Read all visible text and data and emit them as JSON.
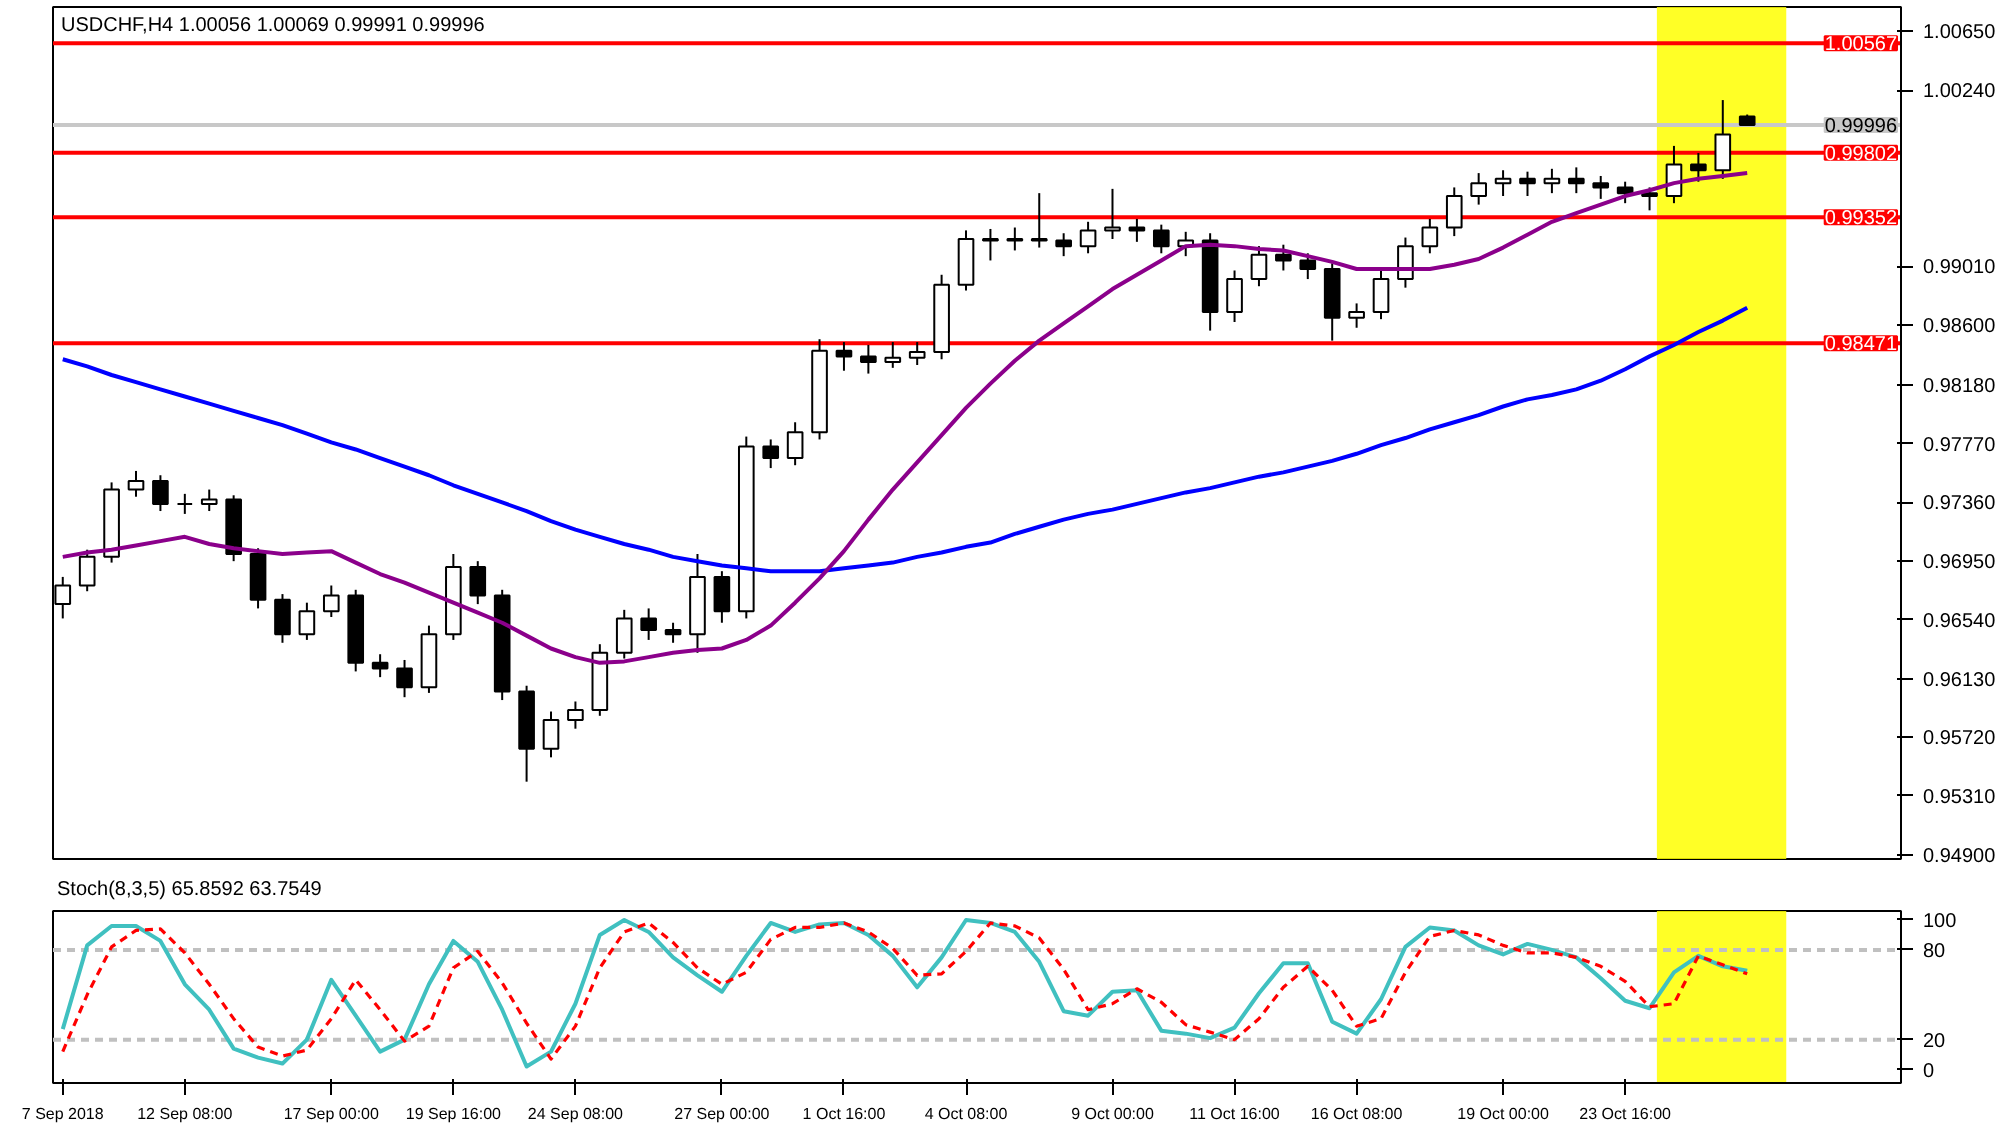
{
  "chart_data": [
    {
      "type": "candlestick",
      "title": "USDCHF,H4 1.00056 1.00069 0.99991 0.99996",
      "categories": [
        null,
        null,
        null,
        null,
        null,
        null,
        null,
        null,
        null,
        null,
        null,
        null,
        null,
        null,
        null,
        null,
        null,
        null,
        null,
        null,
        null,
        null,
        null,
        null,
        null,
        null,
        null,
        null,
        null,
        null,
        null,
        null,
        null,
        null,
        null,
        null,
        null,
        null,
        null,
        null,
        null,
        null,
        null,
        null,
        null,
        null,
        null,
        null,
        null,
        null,
        null,
        null,
        null,
        null,
        null,
        null,
        null,
        null,
        null,
        null,
        null,
        null,
        null,
        null,
        null,
        null,
        null,
        null,
        null,
        null
      ],
      "ohlc": [
        [
          0.9665,
          0.9684,
          0.9655,
          0.9678
        ],
        [
          0.9678,
          0.9703,
          0.9674,
          0.9698
        ],
        [
          0.9698,
          0.975,
          0.9694,
          0.9745
        ],
        [
          0.9745,
          0.9758,
          0.974,
          0.9751
        ],
        [
          0.9751,
          0.9755,
          0.973,
          0.9735
        ],
        [
          0.9735,
          0.9742,
          0.9728,
          0.9735
        ],
        [
          0.9735,
          0.9745,
          0.973,
          0.9738
        ],
        [
          0.9738,
          0.9741,
          0.9695,
          0.97
        ],
        [
          0.97,
          0.9704,
          0.9662,
          0.9668
        ],
        [
          0.9668,
          0.9672,
          0.9638,
          0.9644
        ],
        [
          0.9644,
          0.9666,
          0.964,
          0.966
        ],
        [
          0.966,
          0.9678,
          0.9656,
          0.9671
        ],
        [
          0.9671,
          0.9675,
          0.9618,
          0.9624
        ],
        [
          0.9624,
          0.963,
          0.9614,
          0.962
        ],
        [
          0.962,
          0.9626,
          0.96,
          0.9607
        ],
        [
          0.9607,
          0.965,
          0.9603,
          0.9644
        ],
        [
          0.9644,
          0.97,
          0.964,
          0.9691
        ],
        [
          0.9691,
          0.9695,
          0.9665,
          0.9671
        ],
        [
          0.9671,
          0.9675,
          0.9598,
          0.9604
        ],
        [
          0.9604,
          0.9608,
          0.9541,
          0.9564
        ],
        [
          0.9564,
          0.959,
          0.9558,
          0.9584
        ],
        [
          0.9584,
          0.9597,
          0.9578,
          0.9591
        ],
        [
          0.9591,
          0.9637,
          0.9587,
          0.9631
        ],
        [
          0.9631,
          0.9661,
          0.9627,
          0.9655
        ],
        [
          0.9655,
          0.9662,
          0.964,
          0.9647
        ],
        [
          0.9647,
          0.9652,
          0.9638,
          0.9644
        ],
        [
          0.9644,
          0.97,
          0.9631,
          0.9684
        ],
        [
          0.9684,
          0.9688,
          0.9652,
          0.966
        ],
        [
          0.966,
          0.9782,
          0.9655,
          0.9775
        ],
        [
          0.9775,
          0.978,
          0.976,
          0.9767
        ],
        [
          0.9767,
          0.9792,
          0.9762,
          0.9785
        ],
        [
          0.9785,
          0.985,
          0.978,
          0.9842
        ],
        [
          0.9842,
          0.9848,
          0.9828,
          0.9838
        ],
        [
          0.9838,
          0.9846,
          0.9826,
          0.9834
        ],
        [
          0.9834,
          0.9848,
          0.983,
          0.9837
        ],
        [
          0.9837,
          0.9848,
          0.9832,
          0.9841
        ],
        [
          0.9841,
          0.9895,
          0.9836,
          0.9888
        ],
        [
          0.9888,
          0.9926,
          0.9884,
          0.992
        ],
        [
          0.992,
          0.9927,
          0.9905,
          0.9919
        ],
        [
          0.9919,
          0.9928,
          0.9912,
          0.992
        ],
        [
          0.992,
          0.9952,
          0.9914,
          0.9919
        ],
        [
          0.9919,
          0.9924,
          0.9908,
          0.9915
        ],
        [
          0.9915,
          0.9932,
          0.991,
          0.9926
        ],
        [
          0.9926,
          0.9955,
          0.992,
          0.9928
        ],
        [
          0.9928,
          0.9934,
          0.9918,
          0.9926
        ],
        [
          0.9926,
          0.993,
          0.991,
          0.9915
        ],
        [
          0.9915,
          0.9925,
          0.9908,
          0.9919
        ],
        [
          0.9919,
          0.9924,
          0.9856,
          0.9869
        ],
        [
          0.9869,
          0.9898,
          0.9862,
          0.9892
        ],
        [
          0.9892,
          0.9915,
          0.9887,
          0.9909
        ],
        [
          0.9909,
          0.9916,
          0.9898,
          0.9905
        ],
        [
          0.9905,
          0.991,
          0.9892,
          0.9899
        ],
        [
          0.9899,
          0.9903,
          0.9849,
          0.9865
        ],
        [
          0.9865,
          0.9875,
          0.9858,
          0.9869
        ],
        [
          0.9869,
          0.9898,
          0.9864,
          0.9892
        ],
        [
          0.9892,
          0.9921,
          0.9886,
          0.9915
        ],
        [
          0.9915,
          0.9934,
          0.991,
          0.9928
        ],
        [
          0.9928,
          0.9956,
          0.9922,
          0.995
        ],
        [
          0.995,
          0.9966,
          0.9944,
          0.9959
        ],
        [
          0.9959,
          0.9968,
          0.995,
          0.9962
        ],
        [
          0.9962,
          0.9967,
          0.995,
          0.9959
        ],
        [
          0.9959,
          0.9969,
          0.9952,
          0.9962
        ],
        [
          0.9962,
          0.997,
          0.9952,
          0.9959
        ],
        [
          0.9959,
          0.9964,
          0.9948,
          0.9956
        ],
        [
          0.9956,
          0.996,
          0.9945,
          0.9952
        ],
        [
          0.9952,
          0.9956,
          0.994,
          0.995
        ],
        [
          0.995,
          0.9985,
          0.9945,
          0.9972
        ],
        [
          0.9972,
          0.998,
          0.996,
          0.9968
        ],
        [
          0.9968,
          1.0017,
          0.9962,
          0.9993
        ],
        [
          1.00056,
          1.00069,
          0.99991,
          0.99996
        ]
      ],
      "series": [
        {
          "type": "line",
          "color": "#0000ff",
          "values": [
            0.9836,
            0.9831,
            0.9825,
            0.982,
            0.9815,
            0.981,
            0.9805,
            0.98,
            0.9795,
            0.979,
            0.9784,
            0.9778,
            0.9773,
            0.9767,
            0.9761,
            0.9755,
            0.9748,
            0.9742,
            0.9736,
            0.973,
            0.9723,
            0.9717,
            0.9712,
            0.9707,
            0.9703,
            0.9698,
            0.9695,
            0.9692,
            0.969,
            0.9688,
            0.9688,
            0.9688,
            0.969,
            0.9692,
            0.9694,
            0.9698,
            0.9701,
            0.9705,
            0.9708,
            0.9714,
            0.9719,
            0.9724,
            0.9728,
            0.9731,
            0.9735,
            0.9739,
            0.9743,
            0.9746,
            0.975,
            0.9754,
            0.9757,
            0.9761,
            0.9765,
            0.977,
            0.9776,
            0.9781,
            0.9787,
            0.9792,
            0.9797,
            0.9803,
            0.9808,
            0.9811,
            0.9815,
            0.9821,
            0.9829,
            0.9838,
            0.9846,
            0.9855,
            0.9863,
            0.9872
          ]
        },
        {
          "type": "line",
          "color": "#8b008b",
          "values": [
            0.9698,
            0.9701,
            0.9703,
            0.9706,
            0.9709,
            0.9712,
            0.9707,
            0.9704,
            0.9702,
            0.97,
            0.9701,
            0.9702,
            0.9694,
            0.9686,
            0.968,
            0.9673,
            0.9666,
            0.9659,
            0.9652,
            0.9643,
            0.9634,
            0.9628,
            0.9624,
            0.9625,
            0.9628,
            0.9631,
            0.9633,
            0.9634,
            0.964,
            0.965,
            0.9666,
            0.9683,
            0.9702,
            0.9724,
            0.9745,
            0.9764,
            0.9783,
            0.9802,
            0.9819,
            0.9835,
            0.9849,
            0.9861,
            0.9873,
            0.9885,
            0.9895,
            0.9905,
            0.9915,
            0.9916,
            0.9915,
            0.9913,
            0.9912,
            0.9908,
            0.9904,
            0.9899,
            0.9899,
            0.9899,
            0.9899,
            0.9902,
            0.9906,
            0.9914,
            0.9923,
            0.9932,
            0.9938,
            0.9944,
            0.995,
            0.9954,
            0.9959,
            0.9962,
            0.9964,
            0.9966
          ]
        }
      ],
      "ylim": [
        0.9487,
        1.0082
      ],
      "yticks": [
        {
          "value": 1.0065,
          "label": "1.00650"
        },
        {
          "value": 1.0024,
          "label": "1.00240"
        },
        {
          "value": 0.9901,
          "label": "0.99010"
        },
        {
          "value": 0.986,
          "label": "0.98600"
        },
        {
          "value": 0.9818,
          "label": "0.98180"
        },
        {
          "value": 0.9777,
          "label": "0.97770"
        },
        {
          "value": 0.9736,
          "label": "0.97360"
        },
        {
          "value": 0.9695,
          "label": "0.96950"
        },
        {
          "value": 0.9654,
          "label": "0.96540"
        },
        {
          "value": 0.9613,
          "label": "0.96130"
        },
        {
          "value": 0.9572,
          "label": "0.95720"
        },
        {
          "value": 0.9531,
          "label": "0.95310"
        },
        {
          "value": 0.949,
          "label": "0.94900"
        }
      ],
      "tick_labels": "y",
      "ref_lines": [
        {
          "axis": "y",
          "value": 1.00567,
          "label": "1.00567",
          "color": "#ff0000"
        },
        {
          "axis": "y",
          "value": 0.99996,
          "label": "0.99996",
          "color": "#c8c8c8"
        },
        {
          "axis": "y",
          "value": 0.99802,
          "label": "0.99802",
          "color": "#ff0000"
        },
        {
          "axis": "y",
          "value": 0.99352,
          "label": "0.99352",
          "color": "#ff0000"
        },
        {
          "axis": "y",
          "value": 0.98471,
          "label": "0.98471",
          "color": "#ff0000"
        }
      ]
    },
    {
      "type": "line",
      "title": "Stoch(8,3,5) 65.8592 63.7549",
      "categories": [
        "7 Sep 2018",
        null,
        null,
        null,
        null,
        "12 Sep 08:00",
        null,
        null,
        null,
        null,
        null,
        "17 Sep 00:00",
        null,
        null,
        null,
        null,
        "19 Sep 16:00",
        null,
        null,
        null,
        null,
        "24 Sep 08:00",
        null,
        null,
        null,
        null,
        null,
        "27 Sep 00:00",
        null,
        null,
        null,
        null,
        "1 Oct 16:00",
        null,
        null,
        null,
        null,
        "4 Oct 08:00",
        null,
        null,
        null,
        null,
        null,
        "9 Oct 00:00",
        null,
        null,
        null,
        null,
        "11 Oct 16:00",
        null,
        null,
        null,
        null,
        "16 Oct 08:00",
        null,
        null,
        null,
        null,
        null,
        "19 Oct 00:00",
        null,
        null,
        null,
        null,
        "23 Oct 16:00",
        null,
        null,
        null,
        null,
        null
      ],
      "series": [
        {
          "color": "#40c0c0",
          "values": [
            27,
            83,
            96,
            96,
            86,
            57,
            40,
            14,
            8,
            4,
            20,
            60,
            36,
            12,
            20,
            57,
            86,
            72,
            40,
            2,
            12,
            44,
            90,
            100,
            92,
            75,
            63,
            52,
            76,
            98,
            92,
            97,
            98,
            90,
            76,
            55,
            75,
            100,
            98,
            92,
            72,
            39,
            36,
            52,
            53,
            26,
            24,
            21,
            28,
            51,
            71,
            71,
            32,
            24,
            47,
            82,
            95,
            93,
            83,
            77,
            84,
            80,
            75,
            61,
            46,
            41,
            65,
            76,
            69,
            66
          ]
        },
        {
          "color": "#ff0000",
          "line_style": "dashed",
          "values": [
            12,
            50,
            82,
            93,
            94,
            78,
            57,
            34,
            15,
            9,
            13,
            34,
            60,
            40,
            19,
            29,
            68,
            79,
            58,
            31,
            7,
            29,
            68,
            92,
            98,
            85,
            68,
            57,
            65,
            87,
            95,
            95,
            98,
            92,
            81,
            63,
            64,
            79,
            98,
            96,
            88,
            67,
            40,
            44,
            54,
            45,
            30,
            25,
            20,
            34,
            55,
            69,
            53,
            29,
            34,
            65,
            89,
            93,
            90,
            83,
            78,
            78,
            75,
            69,
            59,
            42,
            44,
            76,
            70,
            64
          ]
        }
      ],
      "ylim": [
        -9,
        106
      ],
      "yticks": [
        0,
        20,
        80,
        100
      ],
      "ref_lines": [
        {
          "axis": "y",
          "value": 80,
          "color": "#c0c0c0",
          "line_style": "dashed"
        },
        {
          "axis": "y",
          "value": 20,
          "color": "#c0c0c0",
          "line_style": "dashed"
        }
      ]
    }
  ]
}
